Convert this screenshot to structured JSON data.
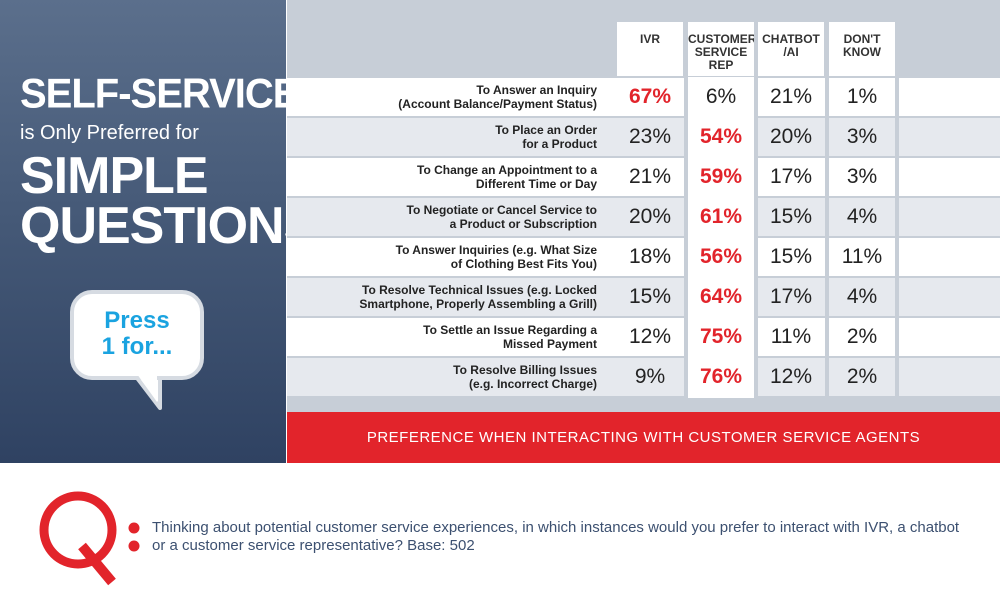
{
  "headline": {
    "line1": "SELF-SERVICE",
    "line2": "is Only Preferred for",
    "line3": "SIMPLE",
    "line4": "QUESTIONS"
  },
  "bubble": {
    "text": "Press\n1 for..."
  },
  "banner": "PREFERENCE WHEN INTERACTING WITH CUSTOMER SERVICE AGENTS",
  "question": {
    "letter": "Q",
    "text": "Thinking about potential customer service experiences, in which instances would you prefer to interact with IVR, a chatbot or a customer service representative? Base: 502"
  },
  "colors": {
    "accent_red": "#e2242b",
    "panel_blue": "#465a78",
    "bubble_blue": "#1aa3e0",
    "grid_gray": "#c7ced7"
  },
  "chart_data": {
    "type": "table",
    "columns": [
      "IVR",
      "CUSTOMER\nSERVICE\nREP",
      "CHATBOT\n/AI",
      "DON'T\nKNOW"
    ],
    "rows": [
      {
        "label": "To Answer an Inquiry\n(Account Balance/Payment Status)",
        "values": [
          "67%",
          "6%",
          "21%",
          "1%"
        ],
        "highlight": 0
      },
      {
        "label": "To Place an Order\nfor a Product",
        "values": [
          "23%",
          "54%",
          "20%",
          "3%"
        ],
        "highlight": 1
      },
      {
        "label": "To Change an Appointment to a\nDifferent Time or Day",
        "values": [
          "21%",
          "59%",
          "17%",
          "3%"
        ],
        "highlight": 1
      },
      {
        "label": "To Negotiate or Cancel Service to\na Product or Subscription",
        "values": [
          "20%",
          "61%",
          "15%",
          "4%"
        ],
        "highlight": 1
      },
      {
        "label": "To Answer Inquiries (e.g. What Size\nof Clothing Best Fits You)",
        "values": [
          "18%",
          "56%",
          "15%",
          "11%"
        ],
        "highlight": 1
      },
      {
        "label": "To Resolve Technical Issues (e.g. Locked\nSmartphone, Properly Assembling a Grill)",
        "values": [
          "15%",
          "64%",
          "17%",
          "4%"
        ],
        "highlight": 1
      },
      {
        "label": "To Settle an Issue Regarding a\nMissed Payment",
        "values": [
          "12%",
          "75%",
          "11%",
          "2%"
        ],
        "highlight": 1
      },
      {
        "label": "To Resolve Billing Issues\n(e.g. Incorrect Charge)",
        "values": [
          "9%",
          "76%",
          "12%",
          "2%"
        ],
        "highlight": 1
      }
    ]
  }
}
